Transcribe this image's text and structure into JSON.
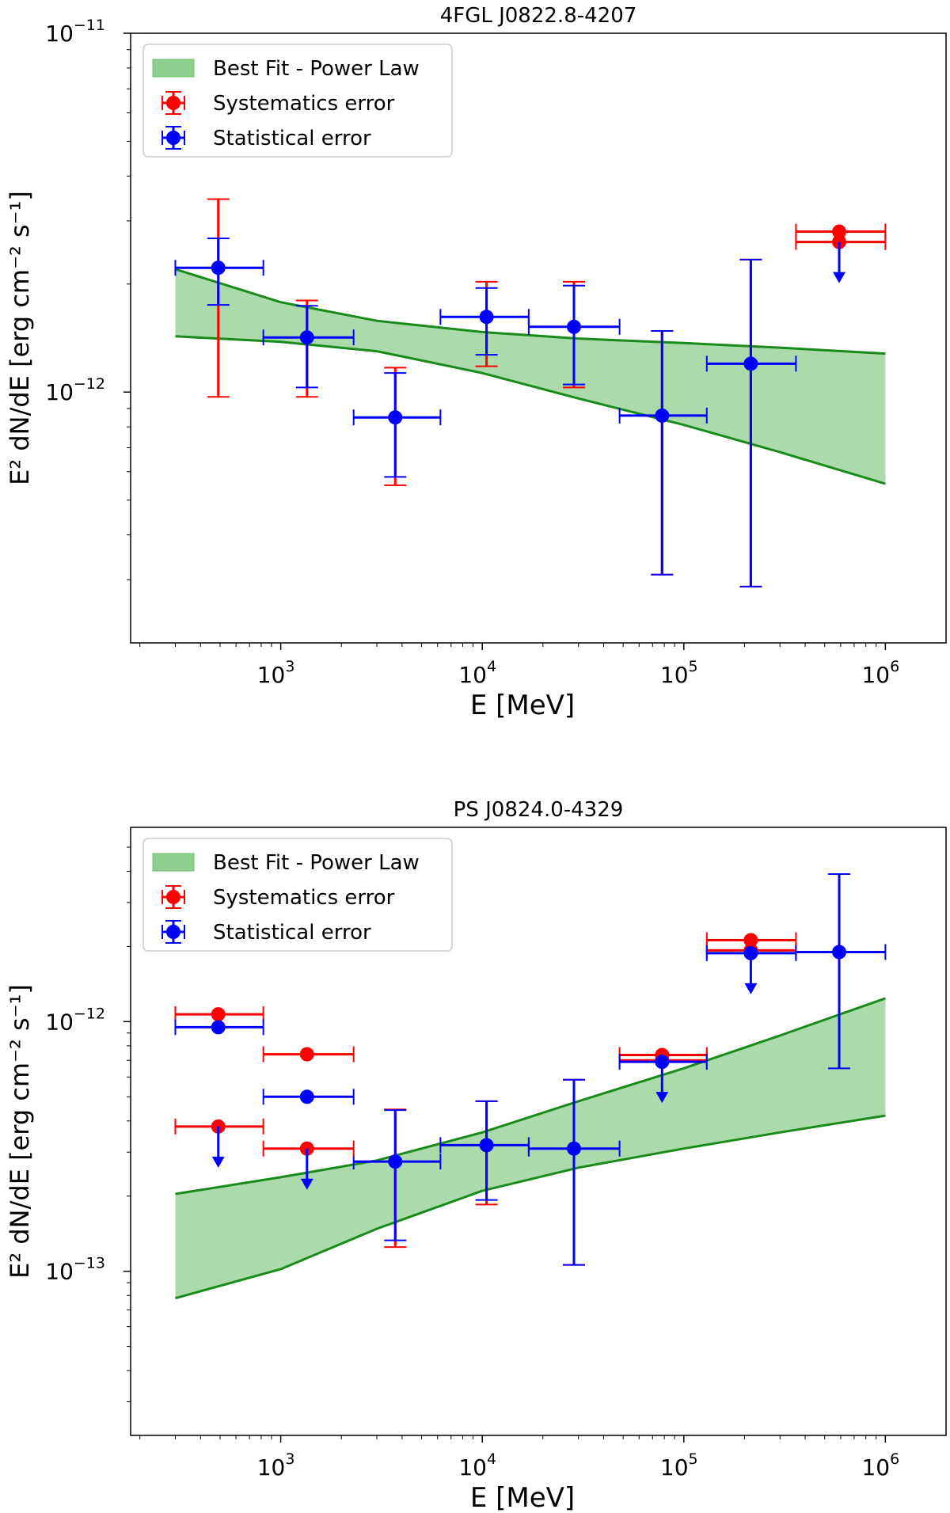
{
  "chart_data": [
    {
      "type": "scatter",
      "title": "4FGL J0822.8-4207",
      "xlabel": "E [MeV]",
      "ylabel": "E² dN/dE [erg cm⁻² s⁻¹]",
      "xscale": "log",
      "yscale": "log",
      "xlim": [
        180,
        2000000
      ],
      "ylim": [
        2e-13,
        1e-11
      ],
      "x_ticks": [
        {
          "base": "10",
          "exp": "3",
          "value": 1000
        },
        {
          "base": "10",
          "exp": "4",
          "value": 10000
        },
        {
          "base": "10",
          "exp": "5",
          "value": 100000
        },
        {
          "base": "10",
          "exp": "6",
          "value": 1000000
        }
      ],
      "y_ticks": [
        {
          "base": "10",
          "exp": "−11",
          "value": 1e-11
        },
        {
          "base": "10",
          "exp": "−12",
          "value": 1e-12
        }
      ],
      "legend": {
        "position": "top-left",
        "entries": [
          {
            "label": "Best Fit - Power Law",
            "kind": "band",
            "color": "#2ca02c"
          },
          {
            "label": "Systematics error",
            "kind": "errorbar",
            "color": "#ff0000"
          },
          {
            "label": "Statistical error",
            "kind": "errorbar",
            "color": "#0000ff"
          }
        ]
      },
      "band": {
        "name": "Best Fit - Power Law",
        "fill": "#8fcf8f",
        "line_color": "#1a8a1a",
        "x": [
          300,
          1000,
          3000,
          10000,
          30000,
          100000,
          300000,
          1000000
        ],
        "upper": [
          2.2e-12,
          1.78e-12,
          1.58e-12,
          1.47e-12,
          1.41e-12,
          1.37e-12,
          1.33e-12,
          1.28e-12
        ],
        "lower": [
          1.43e-12,
          1.38e-12,
          1.3e-12,
          1.13e-12,
          9.6e-13,
          8.1e-13,
          6.8e-13,
          5.55e-13
        ]
      },
      "points": [
        {
          "x": 490,
          "y": 2.22e-12,
          "xlo": 300,
          "xhi": 820,
          "stat": [
            1.75e-12,
            2.68e-12
          ],
          "sys": [
            9.7e-13,
            3.45e-12
          ]
        },
        {
          "x": 1350,
          "y": 1.42e-12,
          "xlo": 820,
          "xhi": 2300,
          "stat": [
            1.03e-12,
            1.74e-12
          ],
          "sys": [
            9.7e-13,
            1.8e-12
          ]
        },
        {
          "x": 3700,
          "y": 8.5e-13,
          "xlo": 2300,
          "xhi": 6200,
          "stat": [
            5.8e-13,
            1.13e-12
          ],
          "sys": [
            5.5e-13,
            1.17e-12
          ]
        },
        {
          "x": 10500,
          "y": 1.62e-12,
          "xlo": 6200,
          "xhi": 17000,
          "stat": [
            1.27e-12,
            1.95e-12
          ],
          "sys": [
            1.18e-12,
            2.03e-12
          ]
        },
        {
          "x": 28500,
          "y": 1.52e-12,
          "xlo": 17000,
          "xhi": 48000,
          "stat": [
            1.05e-12,
            1.98e-12
          ],
          "sys": [
            1.03e-12,
            2.03e-12
          ]
        },
        {
          "x": 78000,
          "y": 8.6e-13,
          "xlo": 48000,
          "xhi": 130000,
          "stat": [
            3.1e-13,
            1.48e-12
          ],
          "sys": [
            3.1e-13,
            1.48e-12
          ]
        },
        {
          "x": 215000,
          "y": 1.2e-12,
          "xlo": 130000,
          "xhi": 360000,
          "stat": [
            2.87e-13,
            2.34e-12
          ],
          "sys": [
            2.87e-13,
            2.34e-12
          ]
        }
      ],
      "upper_limits": [
        {
          "x": 590000,
          "xlo": 360000,
          "xhi": 1000000,
          "sys": [
            2.62e-12,
            2.8e-12
          ],
          "stat": []
        }
      ]
    },
    {
      "type": "scatter",
      "title": "PS J0824.0-4329",
      "xlabel": "E [MeV]",
      "ylabel": "E² dN/dE [erg cm⁻² s⁻¹]",
      "xscale": "log",
      "yscale": "log",
      "xlim": [
        180,
        2000000
      ],
      "ylim": [
        2.2e-14,
        6e-12
      ],
      "x_ticks": [
        {
          "base": "10",
          "exp": "3",
          "value": 1000
        },
        {
          "base": "10",
          "exp": "4",
          "value": 10000
        },
        {
          "base": "10",
          "exp": "5",
          "value": 100000
        },
        {
          "base": "10",
          "exp": "6",
          "value": 1000000
        }
      ],
      "y_ticks": [
        {
          "base": "10",
          "exp": "−12",
          "value": 1e-12
        },
        {
          "base": "10",
          "exp": "−13",
          "value": 1e-13
        }
      ],
      "legend": {
        "position": "top-left",
        "entries": [
          {
            "label": "Best Fit - Power Law",
            "kind": "band",
            "color": "#2ca02c"
          },
          {
            "label": "Systematics error",
            "kind": "errorbar",
            "color": "#ff0000"
          },
          {
            "label": "Statistical error",
            "kind": "errorbar",
            "color": "#0000ff"
          }
        ]
      },
      "band": {
        "name": "Best Fit - Power Law",
        "fill": "#8fcf8f",
        "line_color": "#1a8a1a",
        "x": [
          300,
          1000,
          3000,
          10000,
          30000,
          100000,
          300000,
          1000000
        ],
        "upper": [
          2.04e-13,
          2.38e-13,
          2.78e-13,
          3.6e-13,
          4.8e-13,
          6.5e-13,
          8.8e-13,
          1.24e-12
        ],
        "lower": [
          7.8e-14,
          1.02e-13,
          1.48e-13,
          2.1e-13,
          2.6e-13,
          3.1e-13,
          3.6e-13,
          4.2e-13
        ]
      },
      "points": [
        {
          "x": 3700,
          "y": 2.75e-13,
          "xlo": 2300,
          "xhi": 6200,
          "stat": [
            1.33e-13,
            4.42e-13
          ],
          "sys": [
            1.25e-13,
            4.45e-13
          ]
        },
        {
          "x": 10500,
          "y": 3.2e-13,
          "xlo": 6200,
          "xhi": 17000,
          "stat": [
            1.93e-13,
            4.8e-13
          ],
          "sys": [
            1.85e-13,
            4.8e-13
          ]
        },
        {
          "x": 28500,
          "y": 3.1e-13,
          "xlo": 17000,
          "xhi": 48000,
          "stat": [
            1.06e-13,
            5.85e-13
          ],
          "sys": [
            1.06e-13,
            5.85e-13
          ]
        },
        {
          "x": 590000,
          "y": 1.9e-12,
          "xlo": 360000,
          "xhi": 1000000,
          "stat": [
            6.5e-13,
            3.9e-12
          ],
          "sys": []
        }
      ],
      "upper_limits": [
        {
          "x": 490,
          "xlo": 300,
          "xhi": 820,
          "sys": [
            3.8e-13,
            1.07e-12
          ],
          "stat": [
            9.5e-13
          ]
        },
        {
          "x": 1350,
          "xlo": 820,
          "xhi": 2300,
          "sys": [
            3.1e-13,
            7.4e-13
          ],
          "stat": [
            5e-13
          ]
        },
        {
          "x": 78000,
          "xlo": 48000,
          "xhi": 130000,
          "sys": [
            7e-13,
            7.35e-13
          ],
          "stat": [
            6.9e-13
          ]
        },
        {
          "x": 215000,
          "xlo": 130000,
          "xhi": 360000,
          "sys": [
            1.93e-12,
            2.12e-12
          ],
          "stat": [
            1.88e-12
          ]
        }
      ]
    }
  ]
}
